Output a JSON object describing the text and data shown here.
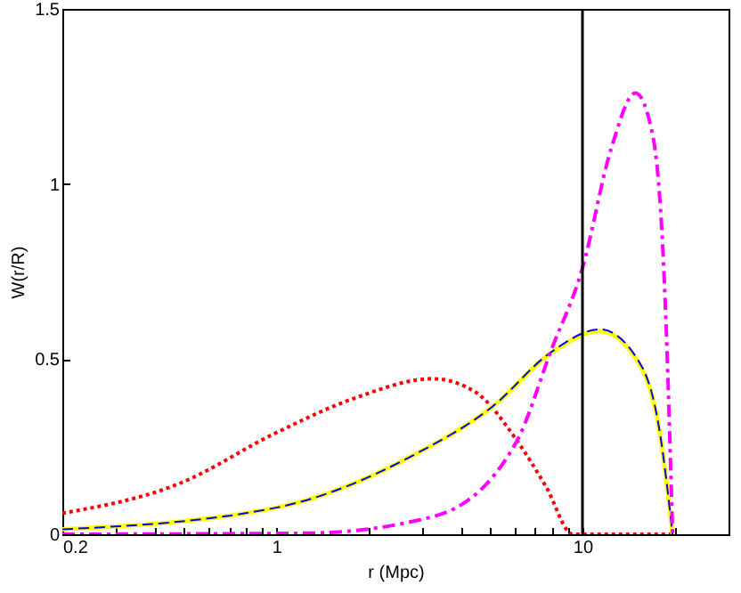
{
  "chart_data": {
    "type": "line",
    "xlabel": "r (Mpc)",
    "ylabel": "W(r/R)",
    "log": "x",
    "xlim": [
      0.2,
      30
    ],
    "xticks": [
      0.2,
      {
        "value": 0.3,
        "label": null
      },
      {
        "value": 0.4,
        "label": null
      },
      {
        "value": 0.5,
        "label": null
      },
      {
        "value": 0.6,
        "label": null
      },
      {
        "value": 0.7,
        "label": null
      },
      {
        "value": 0.8,
        "label": null
      },
      {
        "value": 0.9,
        "label": null
      },
      1,
      {
        "value": 2,
        "label": null
      },
      {
        "value": 3,
        "label": null
      },
      {
        "value": 4,
        "label": null
      },
      {
        "value": 5,
        "label": null
      },
      {
        "value": 6,
        "label": null
      },
      {
        "value": 7,
        "label": null
      },
      {
        "value": 8,
        "label": null
      },
      {
        "value": 9,
        "label": null
      },
      10,
      {
        "value": 20,
        "label": null
      }
    ],
    "ylim": [
      0,
      1.5
    ],
    "yticks": [
      0,
      0.5,
      1,
      1.5
    ],
    "grid": false,
    "marker": "none",
    "series": [
      {
        "color": "#ff0000",
        "line_style": "dotted",
        "x": [
          0.2,
          0.48,
          1.0,
          1.82,
          3.24,
          4.45,
          6.08,
          7.6,
          9.3,
          20
        ],
        "values": [
          0.06,
          0.144,
          0.29,
          0.39,
          0.444,
          0.407,
          0.27,
          0.136,
          0,
          0
        ]
      },
      {
        "color": "#ffff00",
        "line_style": "solid",
        "x": [
          0.2,
          1.0,
          2.85,
          5.09,
          7.9,
          11.4,
          15.6,
          17.9,
          19.7
        ],
        "values": [
          0.014,
          0.076,
          0.229,
          0.365,
          0.517,
          0.58,
          0.474,
          0.288,
          0
        ]
      },
      {
        "color": "#0000ff",
        "line_style": "dashed",
        "x": [
          0.2,
          1.0,
          2.85,
          5.09,
          7.9,
          11.4,
          15.6,
          17.9,
          19.7
        ],
        "values": [
          0.014,
          0.076,
          0.229,
          0.365,
          0.52,
          0.585,
          0.48,
          0.29,
          0
        ]
      },
      {
        "color": "#ff00ff",
        "line_style": "dashdot",
        "x": [
          0.2,
          1.25,
          3.24,
          6.08,
          7.9,
          10,
          12.4,
          14.9,
          17.0,
          18.6,
          19.7
        ],
        "values": [
          0,
          0.003,
          0.05,
          0.263,
          0.525,
          0.76,
          1.1,
          1.26,
          1.135,
          0.68,
          0
        ]
      }
    ],
    "ref_lines": [
      {
        "axis": "x",
        "value": 10,
        "color": "#000000"
      }
    ]
  }
}
